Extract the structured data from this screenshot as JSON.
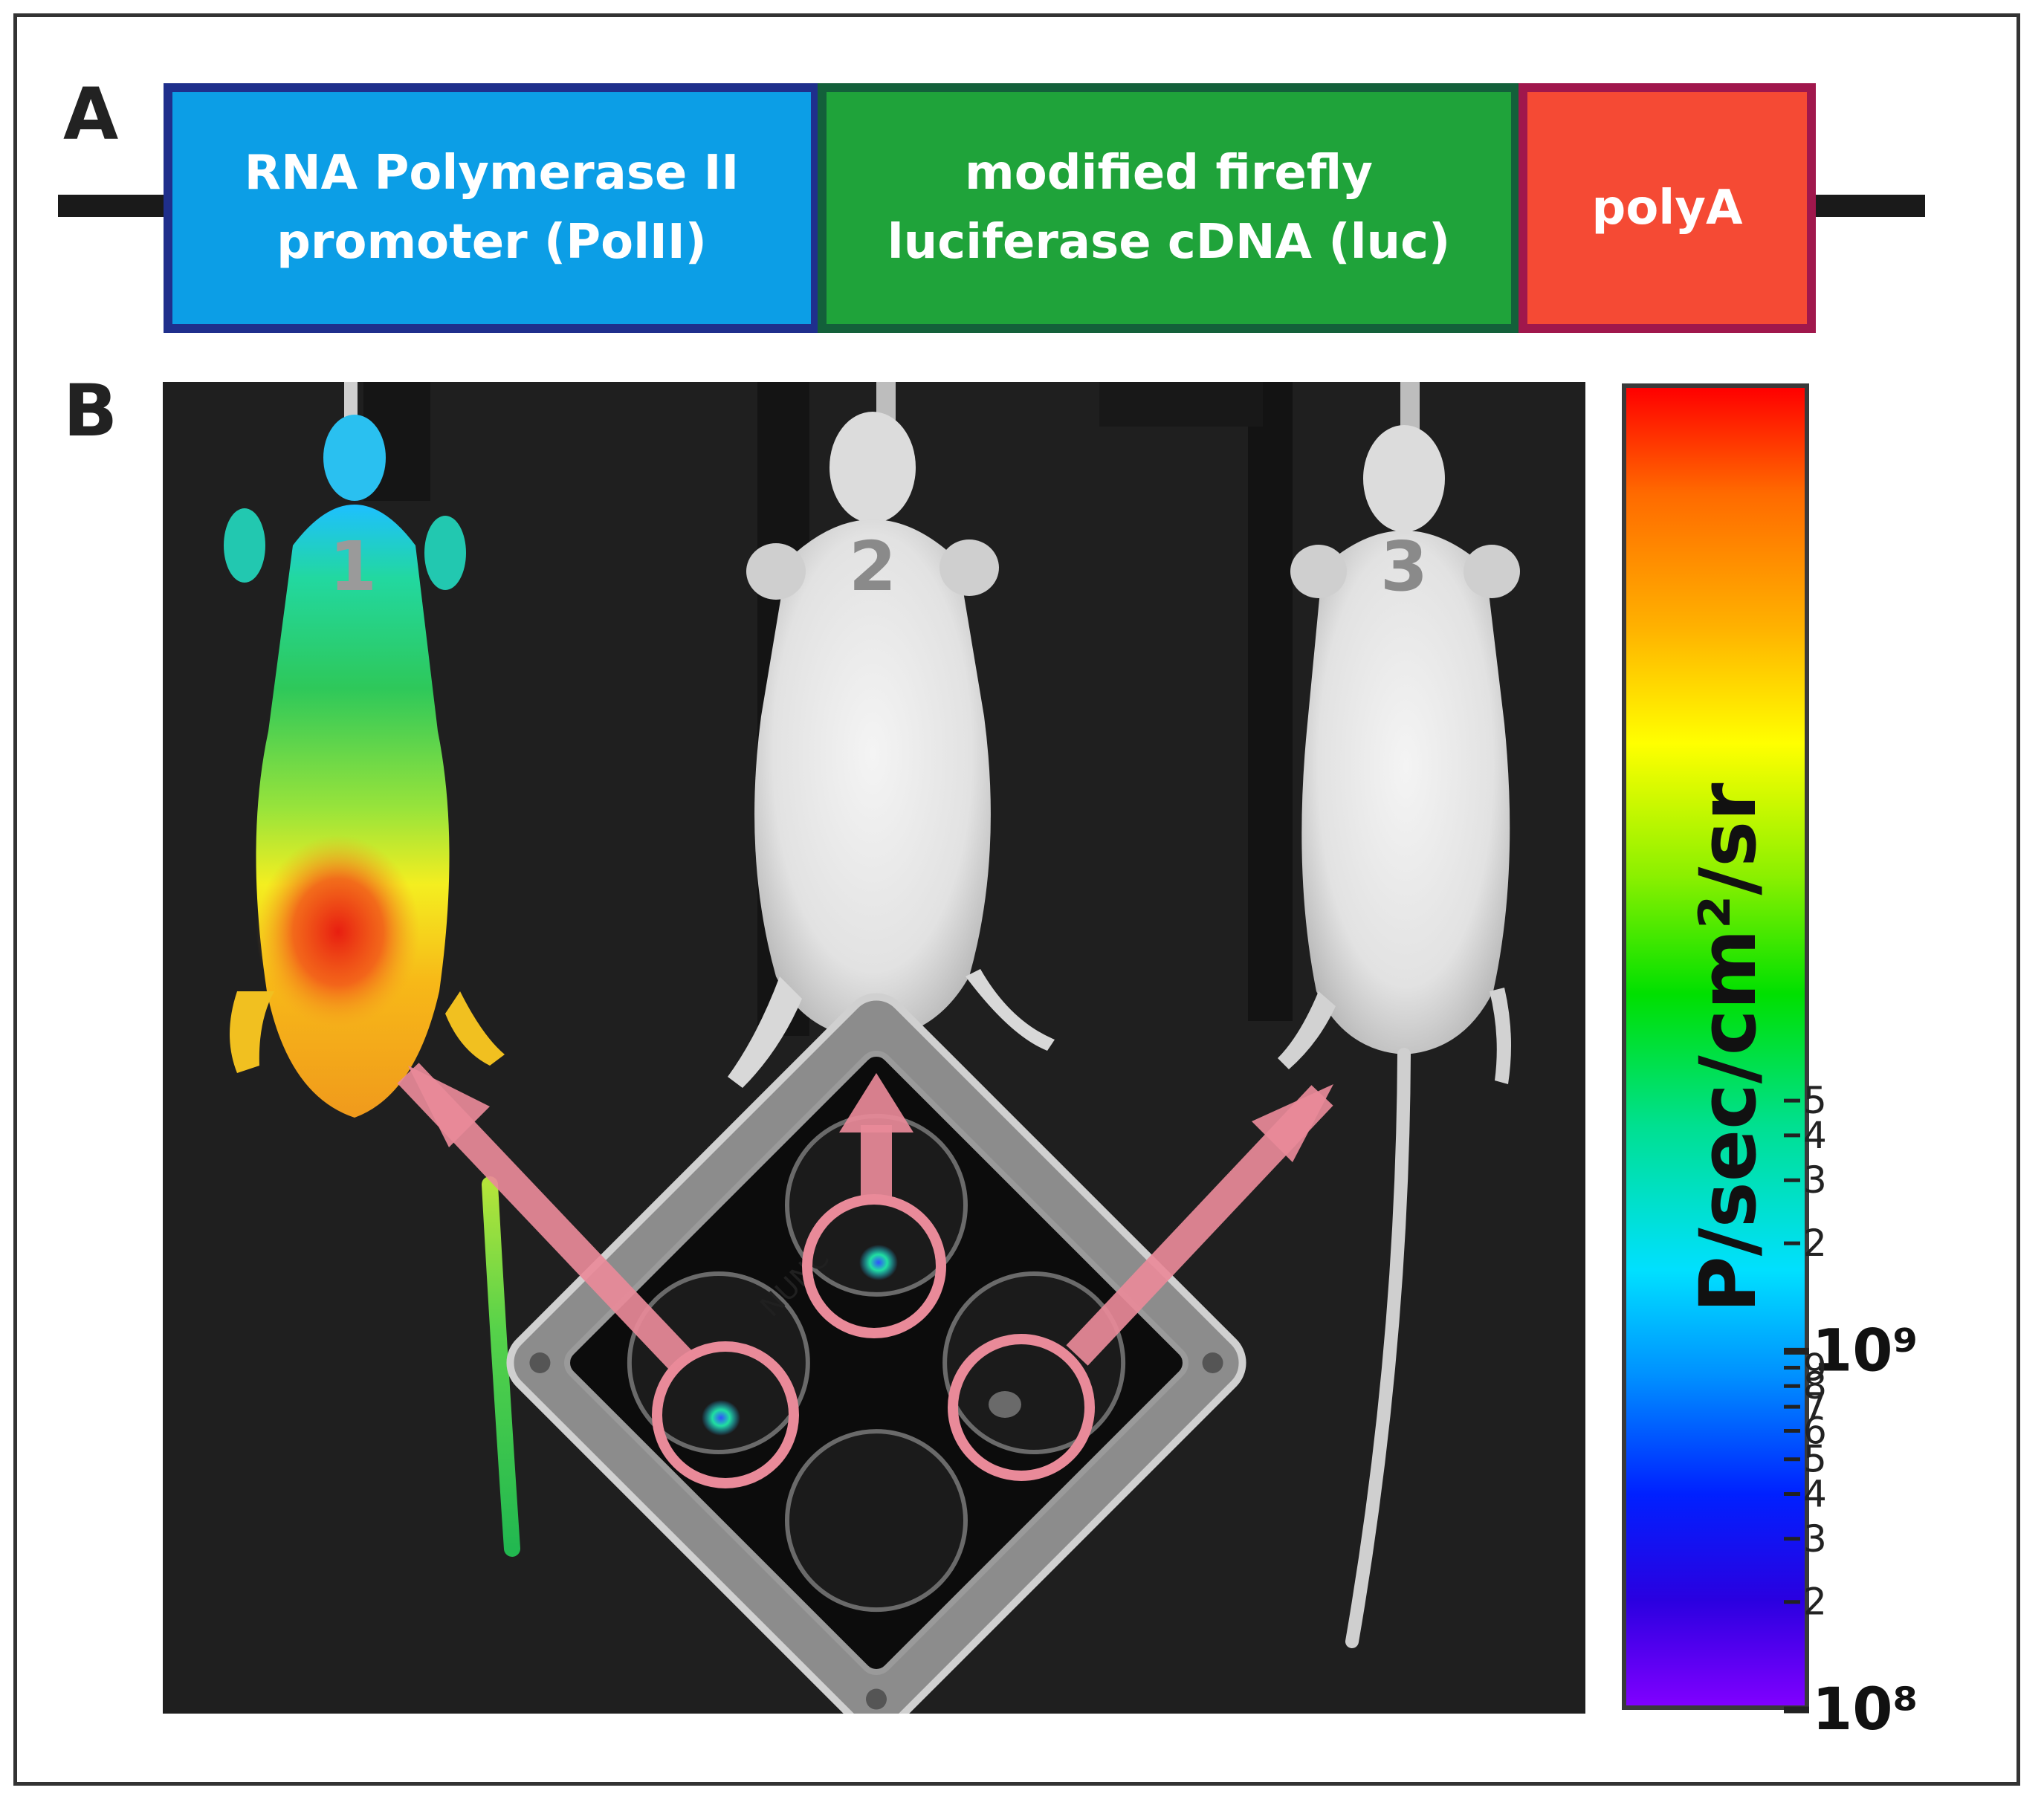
{
  "panel_a": {
    "label": "A",
    "promoter": {
      "line1": "RNA Polymerase II",
      "line2": "promoter (PolII)"
    },
    "reporter": {
      "line1": "modified firefly",
      "line2": "luciferase cDNA (luc)"
    },
    "terminator": {
      "line1": "polyA"
    }
  },
  "panel_b": {
    "label": "B",
    "mice": [
      {
        "number": "1",
        "signal": "whole-body"
      },
      {
        "number": "2",
        "signal": "none"
      },
      {
        "number": "3",
        "signal": "none"
      }
    ],
    "plate_label": "NUNC",
    "wells": [
      {
        "position": "left",
        "signal": true
      },
      {
        "position": "top",
        "signal": true
      },
      {
        "position": "right",
        "signal": false
      },
      {
        "position": "bottom",
        "signal": false
      }
    ]
  },
  "colorbar": {
    "title": "P/sec/cm²/sr",
    "scale": "log",
    "range": [
      100000000,
      500000000000
    ],
    "decades": [
      {
        "value": 100000000,
        "label": "10⁸"
      },
      {
        "value": 1000000000,
        "label": "10⁹"
      }
    ],
    "minor_ticks_lower": [
      "2",
      "3",
      "4",
      "5",
      "6",
      "7",
      "8",
      "9"
    ],
    "minor_ticks_upper": [
      "2",
      "3",
      "4",
      "5"
    ]
  },
  "colors": {
    "promoter_fill": "#0c9ee6",
    "promoter_border": "#1f2f8c",
    "luc_fill": "#1fa33a",
    "luc_border": "#13603a",
    "polya_fill": "#f54a34",
    "polya_border": "#a0174c",
    "arrow": "#e98a99",
    "background_panel": "#1f1f1f"
  }
}
